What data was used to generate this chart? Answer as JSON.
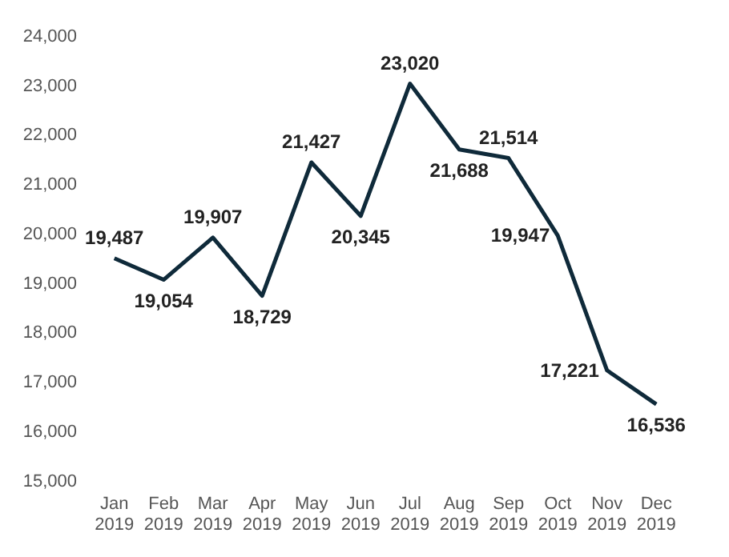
{
  "chart_data": {
    "type": "line",
    "categories": [
      "Jan 2019",
      "Feb 2019",
      "Mar 2019",
      "Apr 2019",
      "May 2019",
      "Jun 2019",
      "Jul 2019",
      "Aug 2019",
      "Sep 2019",
      "Oct 2019",
      "Nov 2019",
      "Dec 2019"
    ],
    "series": [
      {
        "color": "#0f2a3a",
        "values": [
          19487,
          19054,
          19907,
          18729,
          21427,
          20345,
          23020,
          21688,
          21514,
          19947,
          17221,
          16536
        ],
        "value_labels": [
          "19,487",
          "19,054",
          "19,907",
          "18,729",
          "21,427",
          "20,345",
          "23,020",
          "21,688",
          "21,514",
          "19,947",
          "17,221",
          "16,536"
        ]
      }
    ],
    "ylim": [
      15000,
      24000
    ],
    "yticks": [
      {
        "value": 15000,
        "label": "15,000"
      },
      {
        "value": 16000,
        "label": "16,000"
      },
      {
        "value": 17000,
        "label": "17,000"
      },
      {
        "value": 18000,
        "label": "18,000"
      },
      {
        "value": 19000,
        "label": "19,000"
      },
      {
        "value": 20000,
        "label": "20,000"
      },
      {
        "value": 21000,
        "label": "21,000"
      },
      {
        "value": 22000,
        "label": "22,000"
      },
      {
        "value": 23000,
        "label": "23,000"
      },
      {
        "value": 24000,
        "label": "24,000"
      }
    ],
    "grid": false,
    "legend": false,
    "marker": "none",
    "line_style": "solid"
  }
}
